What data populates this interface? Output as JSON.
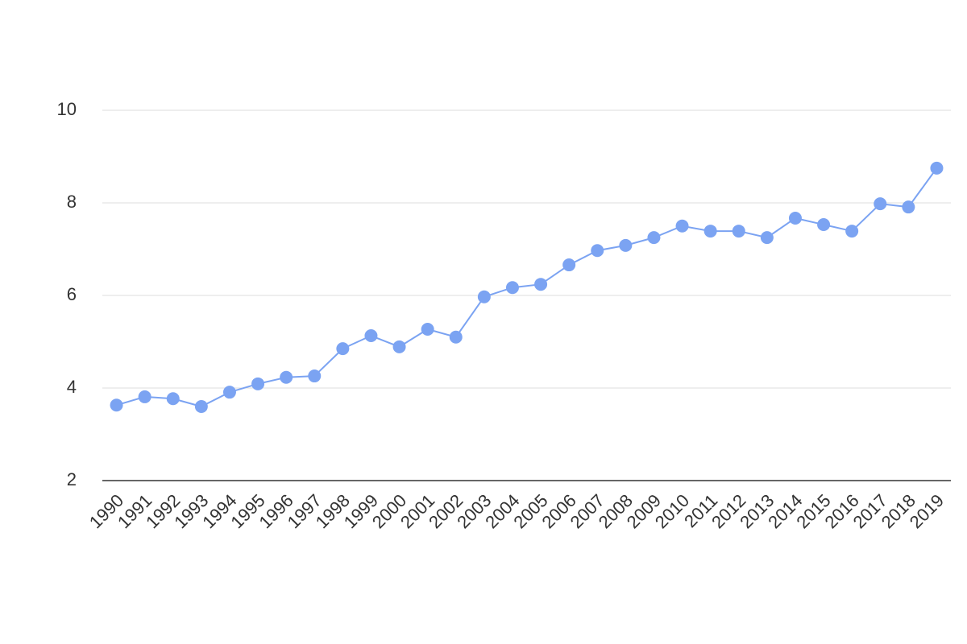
{
  "chart_data": {
    "type": "line",
    "categories": [
      "1990",
      "1991",
      "1992",
      "1993",
      "1994",
      "1995",
      "1996",
      "1997",
      "1998",
      "1999",
      "2000",
      "2001",
      "2002",
      "2003",
      "2004",
      "2005",
      "2006",
      "2007",
      "2008",
      "2009",
      "2010",
      "2011",
      "2012",
      "2013",
      "2014",
      "2015",
      "2016",
      "2017",
      "2018",
      "2019"
    ],
    "series": [
      {
        "color": "#7ba3f2",
        "values": [
          3.63,
          3.81,
          3.77,
          3.6,
          3.91,
          4.09,
          4.23,
          4.26,
          4.85,
          5.13,
          4.89,
          5.27,
          5.1,
          5.97,
          6.17,
          6.24,
          6.66,
          6.97,
          7.08,
          7.25,
          7.5,
          7.39,
          7.39,
          7.25,
          7.67,
          7.53,
          7.39,
          7.98,
          7.91,
          8.75
        ]
      }
    ],
    "ylim": [
      2,
      10
    ],
    "yticks": [
      2,
      4,
      6,
      8,
      10
    ],
    "grid": true
  }
}
